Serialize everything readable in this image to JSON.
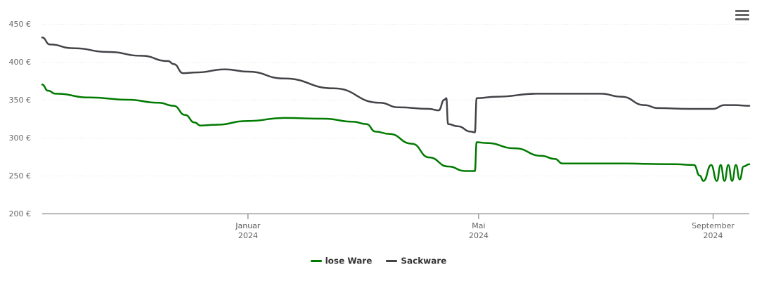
{
  "menu_icon": "hamburger-menu-icon",
  "chart_data": {
    "type": "line",
    "title": "",
    "xlabel": "",
    "ylabel": "",
    "ylim": [
      200,
      450
    ],
    "yticks": [
      {
        "value": 200,
        "label": "200 €"
      },
      {
        "value": 250,
        "label": "250 €"
      },
      {
        "value": 300,
        "label": "300 €"
      },
      {
        "value": 350,
        "label": "350 €"
      },
      {
        "value": 400,
        "label": "400 €"
      },
      {
        "value": 450,
        "label": "450 €"
      }
    ],
    "xlim": [
      "2023-09-15",
      "2024-09-20"
    ],
    "xticks": [
      {
        "date": "2024-01-01",
        "label": "Januar",
        "year": "2024"
      },
      {
        "date": "2024-05-01",
        "label": "Mai",
        "year": "2024"
      },
      {
        "date": "2024-09-01",
        "label": "September",
        "year": "2024"
      }
    ],
    "grid": true,
    "legend": "bottom-center",
    "series": [
      {
        "name": "lose Ware",
        "color": "#007a00",
        "points": [
          [
            "2023-09-15",
            370
          ],
          [
            "2023-09-18",
            362
          ],
          [
            "2023-09-22",
            358
          ],
          [
            "2023-10-10",
            353
          ],
          [
            "2023-10-30",
            350
          ],
          [
            "2023-11-15",
            346
          ],
          [
            "2023-11-23",
            342
          ],
          [
            "2023-11-29",
            330
          ],
          [
            "2023-12-04",
            320
          ],
          [
            "2023-12-07",
            316
          ],
          [
            "2023-12-15",
            317
          ],
          [
            "2024-01-01",
            322
          ],
          [
            "2024-01-20",
            326
          ],
          [
            "2024-02-10",
            325
          ],
          [
            "2024-02-25",
            321
          ],
          [
            "2024-03-03",
            318
          ],
          [
            "2024-03-08",
            308
          ],
          [
            "2024-03-15",
            305
          ],
          [
            "2024-03-27",
            292
          ],
          [
            "2024-04-05",
            274
          ],
          [
            "2024-04-15",
            262
          ],
          [
            "2024-04-24",
            256
          ],
          [
            "2024-04-29",
            256
          ],
          [
            "2024-04-30",
            294
          ],
          [
            "2024-05-05",
            293
          ],
          [
            "2024-05-20",
            286
          ],
          [
            "2024-06-03",
            276
          ],
          [
            "2024-06-10",
            272
          ],
          [
            "2024-06-14",
            266
          ],
          [
            "2024-07-10",
            266
          ],
          [
            "2024-08-12",
            265
          ],
          [
            "2024-08-22",
            264
          ],
          [
            "2024-08-25",
            250
          ],
          [
            "2024-08-27",
            243
          ],
          [
            "2024-08-31",
            264
          ],
          [
            "2024-09-03",
            243
          ],
          [
            "2024-09-05",
            264
          ],
          [
            "2024-09-07",
            243
          ],
          [
            "2024-09-09",
            264
          ],
          [
            "2024-09-11",
            243
          ],
          [
            "2024-09-13",
            264
          ],
          [
            "2024-09-15",
            245
          ],
          [
            "2024-09-17",
            262
          ],
          [
            "2024-09-20",
            265
          ]
        ]
      },
      {
        "name": "Sackware",
        "color": "#434348",
        "points": [
          [
            "2023-09-15",
            432
          ],
          [
            "2023-09-19",
            423
          ],
          [
            "2023-10-01",
            418
          ],
          [
            "2023-10-20",
            413
          ],
          [
            "2023-11-06",
            408
          ],
          [
            "2023-11-20",
            401
          ],
          [
            "2023-11-23",
            397
          ],
          [
            "2023-11-28",
            385
          ],
          [
            "2023-12-05",
            386
          ],
          [
            "2023-12-20",
            390
          ],
          [
            "2024-01-01",
            387
          ],
          [
            "2024-01-20",
            378
          ],
          [
            "2024-02-15",
            365
          ],
          [
            "2024-03-10",
            346
          ],
          [
            "2024-03-20",
            340
          ],
          [
            "2024-04-05",
            338
          ],
          [
            "2024-04-10",
            336
          ],
          [
            "2024-04-13",
            350
          ],
          [
            "2024-04-14",
            352
          ],
          [
            "2024-04-15",
            318
          ],
          [
            "2024-04-20",
            315
          ],
          [
            "2024-04-27",
            308
          ],
          [
            "2024-04-29",
            307
          ],
          [
            "2024-04-30",
            352
          ],
          [
            "2024-05-10",
            354
          ],
          [
            "2024-06-01",
            358
          ],
          [
            "2024-07-04",
            358
          ],
          [
            "2024-07-15",
            354
          ],
          [
            "2024-07-27",
            343
          ],
          [
            "2024-08-03",
            339
          ],
          [
            "2024-08-20",
            338
          ],
          [
            "2024-09-01",
            338
          ],
          [
            "2024-09-07",
            343
          ],
          [
            "2024-09-12",
            343
          ],
          [
            "2024-09-20",
            342
          ]
        ]
      }
    ]
  }
}
